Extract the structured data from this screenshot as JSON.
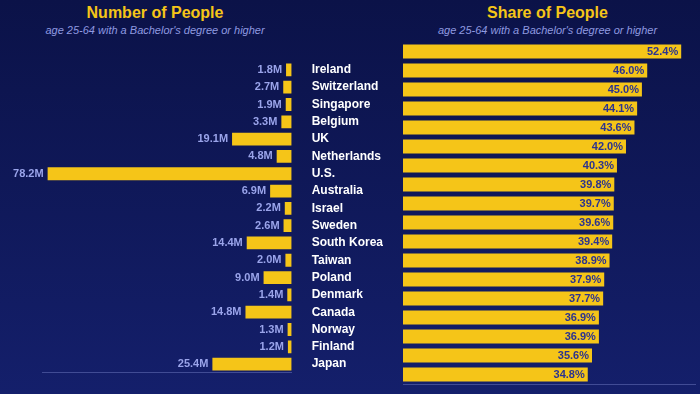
{
  "chart_data": [
    {
      "type": "bar",
      "title": "Number of People",
      "subtitle": "age 25-64 with a Bachelor's degree or higher",
      "orientation": "horizontal",
      "categories": [
        "Ireland",
        "Switzerland",
        "Singapore",
        "Belgium",
        "UK",
        "Netherlands",
        "U.S.",
        "Australia",
        "Israel",
        "Sweden",
        "South Korea",
        "Taiwan",
        "Poland",
        "Denmark",
        "Canada",
        "Norway",
        "Finland",
        "Japan"
      ],
      "values": [
        1.8,
        2.7,
        1.9,
        3.3,
        19.1,
        4.8,
        78.2,
        6.9,
        2.2,
        2.6,
        14.4,
        2.0,
        9.0,
        1.4,
        14.8,
        1.3,
        1.2,
        25.4
      ],
      "value_labels": [
        "1.8M",
        "2.7M",
        "1.9M",
        "3.3M",
        "19.1M",
        "4.8M",
        "78.2M",
        "6.9M",
        "2.2M",
        "2.6M",
        "14.4M",
        "2.0M",
        "9.0M",
        "1.4M",
        "14.8M",
        "1.3M",
        "1.2M",
        "25.4M"
      ],
      "color": "#f5c518",
      "xlim": [
        0,
        80
      ],
      "grid": false,
      "data_labels": true,
      "tick_labels": "y"
    },
    {
      "type": "bar",
      "title": "Share of People",
      "subtitle": "age 25-64 with a Bachelor's degree or higher",
      "orientation": "horizontal",
      "categories": [
        "Ireland",
        "Switzerland",
        "Singapore",
        "Belgium",
        "UK",
        "Netherlands",
        "U.S.",
        "Australia",
        "Israel",
        "Sweden",
        "South Korea",
        "Taiwan",
        "Poland",
        "Denmark",
        "Canada",
        "Norway",
        "Finland",
        "Japan"
      ],
      "values": [
        52.4,
        46.0,
        45.0,
        44.1,
        43.6,
        42.0,
        40.3,
        39.8,
        39.7,
        39.6,
        39.4,
        38.9,
        37.9,
        37.7,
        36.9,
        36.9,
        35.6,
        34.8
      ],
      "value_labels": [
        "52.4%",
        "46.0%",
        "45.0%",
        "44.1%",
        "43.6%",
        "42.0%",
        "40.3%",
        "39.8%",
        "39.7%",
        "39.6%",
        "39.4%",
        "38.9%",
        "37.9%",
        "37.7%",
        "36.9%",
        "36.9%",
        "35.6%",
        "34.8%"
      ],
      "color": "#f5c518",
      "xlim": [
        0,
        55
      ],
      "grid": false,
      "data_labels": true,
      "tick_labels": false
    }
  ]
}
